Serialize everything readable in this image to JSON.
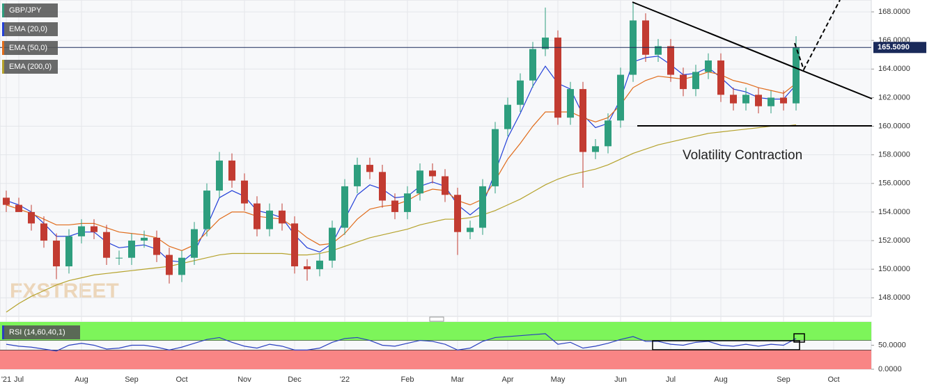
{
  "chart_data": [
    {
      "type": "candlestick",
      "title": "GBP/JPY",
      "watermark": "FXSTREET",
      "annotation": "Volatility Contraction",
      "categories": [
        "'21",
        "Jul",
        null,
        null,
        null,
        null,
        "Aug",
        null,
        null,
        null,
        "Sep",
        null,
        null,
        null,
        "Oct",
        null,
        null,
        null,
        null,
        "Nov",
        null,
        null,
        null,
        "Dec",
        null,
        null,
        null,
        "'22",
        null,
        null,
        null,
        null,
        "Feb",
        null,
        null,
        null,
        "Mar",
        null,
        null,
        null,
        "Apr",
        null,
        null,
        null,
        "May",
        null,
        null,
        null,
        null,
        "Jun",
        null,
        null,
        null,
        "Jul",
        null,
        null,
        null,
        "Aug",
        null,
        null,
        null,
        null,
        "Sep",
        null,
        null,
        null,
        "Oct"
      ],
      "open": [
        155.0,
        154.5,
        154.0,
        153.2,
        152.0,
        150.2,
        152.3,
        153.0,
        152.6,
        150.8,
        150.8,
        152.0,
        152.2,
        151.0,
        149.6,
        150.8,
        152.8,
        155.5,
        157.6,
        156.2,
        154.6,
        152.8,
        154.1,
        153.2,
        150.2,
        150.0,
        150.6,
        152.9,
        155.8,
        157.3,
        156.8,
        154.8,
        154.0,
        155.3,
        156.9,
        156.5,
        155.2,
        152.6,
        152.9,
        155.8,
        159.8,
        161.5,
        163.2,
        165.4,
        166.2,
        160.6,
        162.6,
        158.2,
        158.6,
        160.4,
        163.6,
        167.4,
        165.0,
        165.6,
        163.6,
        162.6,
        163.8,
        164.6,
        162.2,
        161.6,
        162.2,
        161.4,
        162.0,
        161.6,
        null,
        null,
        null
      ],
      "high": [
        155.5,
        155.0,
        154.5,
        153.7,
        152.5,
        152.8,
        153.5,
        153.5,
        153.1,
        151.3,
        152.5,
        152.7,
        152.7,
        151.5,
        151.3,
        153.3,
        156.0,
        158.2,
        158.1,
        156.7,
        155.1,
        154.6,
        154.6,
        153.7,
        150.7,
        151.1,
        153.4,
        156.3,
        157.8,
        157.8,
        157.3,
        155.3,
        155.8,
        157.4,
        157.4,
        157.0,
        155.7,
        153.4,
        156.3,
        160.3,
        162.0,
        163.7,
        165.9,
        168.3,
        166.7,
        163.1,
        163.1,
        159.1,
        160.9,
        164.1,
        168.7,
        167.9,
        166.1,
        166.1,
        164.1,
        164.3,
        165.1,
        165.1,
        162.7,
        162.7,
        162.7,
        162.5,
        162.5,
        166.3,
        null,
        null,
        null
      ],
      "low": [
        154.0,
        154.0,
        152.7,
        151.5,
        149.3,
        149.7,
        151.8,
        152.1,
        150.3,
        150.3,
        150.3,
        151.5,
        150.5,
        149.0,
        149.1,
        150.3,
        152.3,
        155.0,
        155.7,
        154.1,
        152.3,
        152.3,
        152.7,
        149.7,
        149.2,
        149.5,
        150.1,
        152.4,
        155.3,
        156.3,
        154.3,
        153.5,
        153.5,
        154.8,
        156.0,
        154.7,
        151.0,
        152.1,
        152.4,
        155.3,
        159.3,
        161.0,
        162.7,
        164.9,
        160.1,
        160.1,
        155.7,
        157.7,
        158.1,
        159.9,
        163.1,
        164.5,
        164.5,
        163.1,
        162.1,
        162.1,
        163.3,
        161.7,
        161.1,
        161.1,
        160.9,
        160.9,
        161.1,
        161.1,
        null,
        null,
        null
      ],
      "close": [
        154.5,
        154.0,
        153.2,
        152.0,
        150.2,
        152.3,
        153.0,
        152.6,
        150.8,
        150.8,
        152.0,
        152.2,
        151.0,
        149.6,
        150.8,
        152.8,
        155.5,
        157.6,
        156.2,
        154.6,
        152.8,
        154.1,
        153.2,
        150.2,
        150.0,
        150.6,
        152.9,
        155.8,
        157.3,
        156.8,
        154.8,
        154.0,
        155.3,
        156.9,
        156.5,
        155.2,
        152.6,
        152.9,
        155.8,
        159.8,
        161.5,
        163.2,
        165.4,
        166.2,
        160.6,
        162.6,
        158.2,
        158.6,
        160.4,
        163.6,
        167.4,
        165.0,
        165.6,
        163.6,
        162.6,
        163.8,
        164.6,
        162.2,
        161.6,
        162.2,
        161.4,
        162.0,
        161.6,
        165.5,
        null,
        null,
        null
      ],
      "up_color": "#2e9e7e",
      "down_color": "#c23b31",
      "series": [
        {
          "name": "EMA (20,0)",
          "color": "#2340d8",
          "values": [
            154.8,
            154.5,
            154.0,
            153.2,
            152.3,
            152.3,
            152.6,
            152.6,
            151.9,
            151.5,
            151.6,
            151.7,
            151.4,
            150.6,
            150.5,
            151.2,
            153.0,
            155.0,
            155.5,
            155.1,
            154.1,
            153.9,
            153.6,
            152.4,
            151.5,
            151.2,
            151.8,
            153.5,
            155.2,
            155.9,
            155.6,
            155.0,
            155.1,
            155.8,
            156.1,
            155.8,
            154.5,
            153.8,
            154.5,
            156.8,
            159.2,
            160.9,
            162.8,
            164.2,
            163.0,
            162.6,
            160.8,
            159.9,
            160.2,
            161.9,
            164.5,
            164.8,
            164.9,
            164.3,
            163.6,
            163.7,
            164.1,
            163.4,
            162.6,
            162.4,
            162.0,
            161.9,
            161.9,
            162.9,
            null,
            null,
            null
          ]
        },
        {
          "name": "EMA (50,0)",
          "color": "#e06b1a",
          "values": [
            154.5,
            154.2,
            153.9,
            153.5,
            153.1,
            153.1,
            153.2,
            153.2,
            152.9,
            152.6,
            152.5,
            152.4,
            152.2,
            151.6,
            151.3,
            151.7,
            152.6,
            153.5,
            154.0,
            154.0,
            153.7,
            153.6,
            153.5,
            152.9,
            152.2,
            151.7,
            151.8,
            152.5,
            153.5,
            154.2,
            154.4,
            154.5,
            154.8,
            155.3,
            155.6,
            155.5,
            154.8,
            154.5,
            154.9,
            156.2,
            157.7,
            158.8,
            160.0,
            161.0,
            161.0,
            161.0,
            160.6,
            160.3,
            160.6,
            161.5,
            162.7,
            163.2,
            163.5,
            163.4,
            163.3,
            163.5,
            163.8,
            163.6,
            163.2,
            163.0,
            162.7,
            162.5,
            162.3,
            163.0,
            null,
            null,
            null
          ]
        },
        {
          "name": "EMA (200,0)",
          "color": "#b5a22b",
          "values": [
            147.0,
            147.6,
            148.1,
            148.5,
            148.9,
            149.2,
            149.4,
            149.6,
            149.7,
            149.8,
            149.9,
            150.0,
            150.1,
            150.2,
            150.4,
            150.6,
            150.8,
            151.0,
            151.1,
            151.1,
            151.1,
            151.1,
            151.1,
            151.0,
            151.0,
            151.1,
            151.3,
            151.6,
            151.9,
            152.2,
            152.4,
            152.6,
            152.8,
            153.1,
            153.3,
            153.5,
            153.5,
            153.6,
            153.8,
            154.1,
            154.5,
            154.9,
            155.4,
            155.9,
            156.3,
            156.6,
            156.8,
            157.0,
            157.3,
            157.7,
            158.1,
            158.4,
            158.7,
            158.9,
            159.1,
            159.3,
            159.5,
            159.6,
            159.7,
            159.8,
            159.9,
            160.0,
            160.0,
            160.1,
            null,
            null,
            null
          ]
        }
      ],
      "last_price": {
        "value": 165.509,
        "label": "165.5090"
      },
      "ylim": [
        146.7,
        168.83
      ],
      "yticks": [
        {
          "value": 148,
          "label": "148.0000"
        },
        {
          "value": 150,
          "label": "150.0000"
        },
        {
          "value": 152,
          "label": "152.0000"
        },
        {
          "value": 154,
          "label": "154.0000"
        },
        {
          "value": 156,
          "label": "156.0000"
        },
        {
          "value": 158,
          "label": "158.0000"
        },
        {
          "value": 160,
          "label": "160.0000"
        },
        {
          "value": 162,
          "label": "162.0000"
        },
        {
          "value": 164,
          "label": "164.0000"
        },
        {
          "value": 166,
          "label": "166.0000"
        },
        {
          "value": 168,
          "label": "168.0000"
        }
      ],
      "grid": true
    },
    {
      "type": "line",
      "title": "RSI (14,60,40,1)",
      "series": [
        {
          "color": "#2a3fbf",
          "values": [
            52,
            48,
            46,
            42,
            38,
            50,
            54,
            50,
            42,
            44,
            50,
            50,
            46,
            40,
            46,
            54,
            62,
            66,
            56,
            48,
            44,
            52,
            48,
            40,
            40,
            44,
            56,
            64,
            66,
            60,
            50,
            48,
            54,
            60,
            58,
            52,
            40,
            44,
            58,
            66,
            68,
            70,
            72,
            74,
            52,
            56,
            44,
            48,
            54,
            62,
            68,
            58,
            58,
            52,
            50,
            56,
            58,
            50,
            48,
            52,
            48,
            52,
            50,
            64,
            null,
            null,
            null
          ]
        }
      ],
      "upper_band": 60,
      "lower_band": 40,
      "upper_color": "#7df55a",
      "lower_color": "#f98585",
      "ylim": [
        0,
        98.5
      ],
      "yticks": [
        {
          "value": 0,
          "label": "0.0000"
        },
        {
          "value": 50,
          "label": "50.0000"
        }
      ]
    }
  ]
}
